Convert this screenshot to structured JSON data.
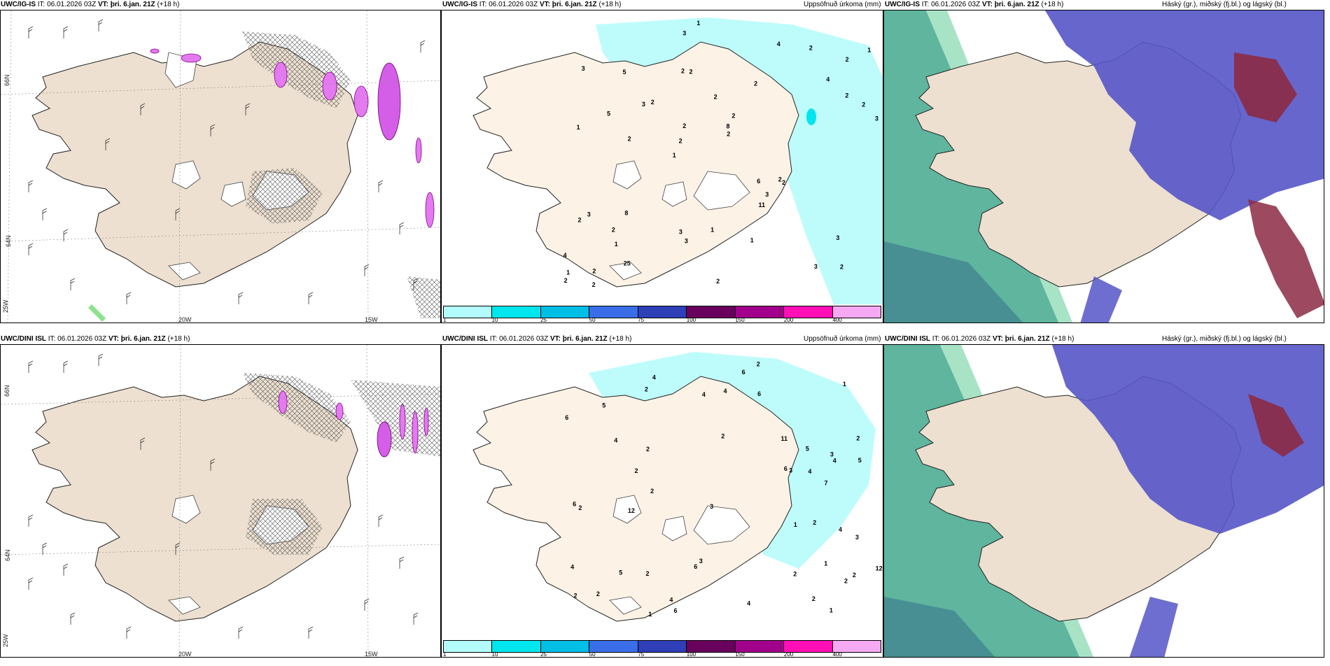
{
  "top": {
    "model_a": "UWC/IG-IS",
    "it_label": "IT:",
    "it_value": "06.01.2026 03Z",
    "vt_label": "VT:",
    "vt_value": "þri. 6.jan. 21Z",
    "lead": "(+18 h)",
    "precip_title": "Uppsöfnuð úrkoma (mm)",
    "cloud_title": "Háský (gr.), miðský (fj.bl.) og lágský (bl.)"
  },
  "bottom": {
    "model_a": "UWC/DINI ISL",
    "it_label": "IT:",
    "it_value": "06.01.2026 03Z",
    "vt_label": "VT:",
    "vt_value": "þri. 6.jan. 21Z",
    "lead": "(+18 h)",
    "precip_title": "Uppsöfnuð úrkoma (mm)",
    "cloud_title": "Háský (gr.), miðský (fj.bl.) og lágský (bl.)"
  },
  "axis_labels": {
    "lat66": "66N",
    "lat64": "64N",
    "lon25": "25W",
    "lon20": "20W",
    "lon15": "15W"
  },
  "legend": {
    "ticks": [
      "1",
      "10",
      "25",
      "50",
      "75",
      "100",
      "150",
      "200",
      "400"
    ],
    "colors": [
      "#b3fbfb",
      "#00e6ee",
      "#00bfe6",
      "#3a6ee8",
      "#2e3fb8",
      "#6a005e",
      "#a0008a",
      "#ff0fb5",
      "#f5a9f2"
    ]
  },
  "precip_numbers_top": [
    "2",
    "1",
    "2",
    "1",
    "2",
    "2",
    "2",
    "2",
    "3",
    "2",
    "4",
    "1",
    "2",
    "2",
    "2",
    "3",
    "3",
    "3",
    "6",
    "2",
    "2",
    "3",
    "2",
    "5",
    "4",
    "8",
    "3",
    "3",
    "2",
    "2",
    "3",
    "5",
    "11",
    "25",
    "2",
    "8",
    "1",
    "3",
    "2",
    "2",
    "4",
    "1",
    "3",
    "1",
    "2",
    "2",
    "2",
    "1",
    "2",
    "1",
    "2"
  ],
  "precip_numbers_bottom": [
    "1",
    "2",
    "2",
    "2",
    "2",
    "4",
    "3",
    "2",
    "1",
    "4",
    "5",
    "6",
    "7",
    "6",
    "4",
    "5",
    "2",
    "2",
    "3",
    "4",
    "6",
    "2",
    "4",
    "6",
    "4",
    "6",
    "6",
    "6",
    "11",
    "12",
    "12",
    "2",
    "1",
    "3",
    "4",
    "2",
    "3",
    "4",
    "1",
    "2",
    "2",
    "4",
    "4",
    "2",
    "3",
    "1",
    "2",
    "2",
    "2",
    "5",
    "5"
  ]
}
